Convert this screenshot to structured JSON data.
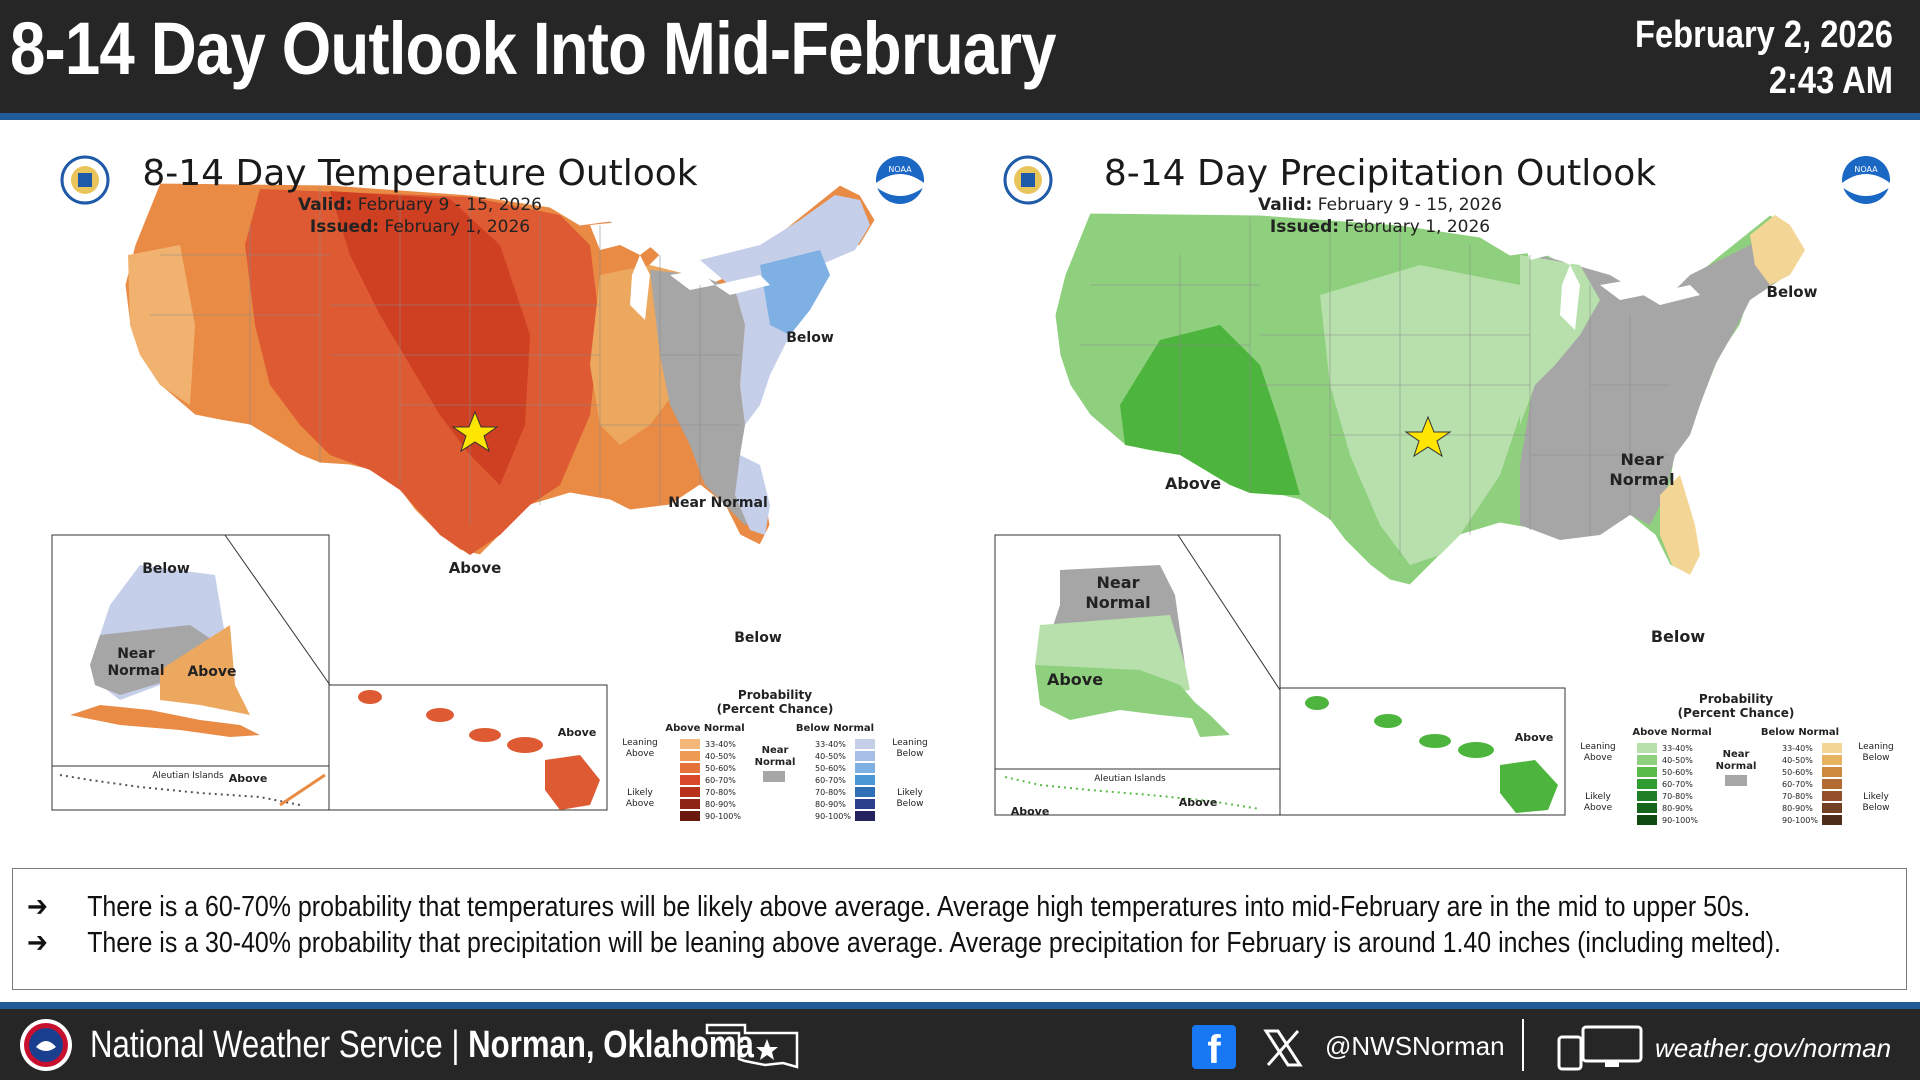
{
  "header": {
    "title": "8-14 Day Outlook Into Mid-February",
    "date": "February 2, 2026",
    "time": "2:43 AM"
  },
  "temperature_map": {
    "title": "8-14 Day Temperature Outlook",
    "valid_label": "Valid:",
    "valid": "February 9 - 15, 2026",
    "issued_label": "Issued:",
    "issued": "February 1, 2026",
    "regions": [
      "Above",
      "Below",
      "Near Normal",
      "Below"
    ],
    "alaska": [
      "Below",
      "Near Normal",
      "Above"
    ],
    "aleutian_label": "Aleutian Islands",
    "aleutian_value": "Above",
    "hawaii": "Above",
    "legend": {
      "title": "Probability (Percent Chance)",
      "above_header": "Above Normal",
      "below_header": "Below Normal",
      "near_label": "Near Normal",
      "leaning_above": "Leaning Above",
      "likely_above": "Likely Above",
      "leaning_below": "Leaning Below",
      "likely_below": "Likely Below",
      "ranges": [
        "33-40%",
        "40-50%",
        "50-60%",
        "60-70%",
        "70-80%",
        "80-90%",
        "90-100%"
      ],
      "above_colors": [
        "#f3b77a",
        "#ee9a52",
        "#e5713b",
        "#d9482a",
        "#b6321c",
        "#8e2413",
        "#6a1a0c"
      ],
      "below_colors": [
        "#c6cfea",
        "#a7bfe6",
        "#7fb0e4",
        "#4a97d6",
        "#2e6fb5",
        "#2b3f8c",
        "#24235f"
      ]
    }
  },
  "precipitation_map": {
    "title": "8-14 Day Precipitation Outlook",
    "valid_label": "Valid:",
    "valid": "February 9 - 15, 2026",
    "issued_label": "Issued:",
    "issued": "February 1, 2026",
    "regions": [
      "Above",
      "Below",
      "Near Normal",
      "Below"
    ],
    "alaska": [
      "Near Normal",
      "Above"
    ],
    "aleutian_label": "Aleutian Islands",
    "aleutian_value": "Above",
    "aleutian_value_2": "Above",
    "hawaii": "Above",
    "legend": {
      "title": "Probability (Percent Chance)",
      "above_header": "Above Normal",
      "below_header": "Below Normal",
      "near_label": "Near Normal",
      "leaning_above": "Leaning Above",
      "likely_above": "Likely Above",
      "leaning_below": "Leaning Below",
      "likely_below": "Likely Below",
      "ranges": [
        "33-40%",
        "40-50%",
        "50-60%",
        "60-70%",
        "70-80%",
        "80-90%",
        "90-100%"
      ],
      "above_colors": [
        "#b7e0ac",
        "#8fd07e",
        "#5bbb4a",
        "#2f9d2f",
        "#1f7f24",
        "#16651c",
        "#0f4a13"
      ],
      "below_colors": [
        "#f3d596",
        "#e7b35f",
        "#cf8a3f",
        "#b46b32",
        "#93502a",
        "#724022",
        "#4e2d1a"
      ]
    }
  },
  "bullets": [
    "There is a 60-70% probability that temperatures will be likely above average.  Average high temperatures into mid-February are in the mid to upper 50s.",
    "There is a 30-40% probability  that precipitation will be leaning above average.  Average precipitation for February is around 1.40 inches (including melted)."
  ],
  "footer": {
    "org": "National Weather Service | ",
    "office": "Norman, Oklahoma",
    "handle": "@NWSNorman",
    "website": "weather.gov/norman"
  },
  "colors": {
    "header_bg": "#262626",
    "accent_rule": "#1f5c99",
    "near_normal": "#a6a6a6",
    "star": "#ffe600"
  }
}
